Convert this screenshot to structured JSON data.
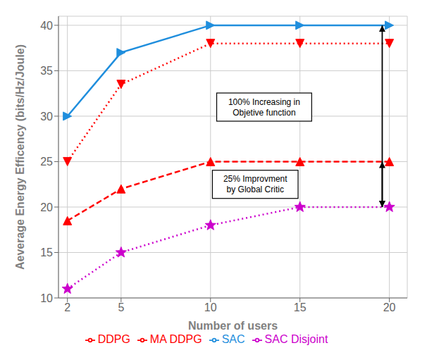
{
  "chart_data": {
    "type": "line",
    "x": [
      2,
      5,
      10,
      15,
      20
    ],
    "series": [
      {
        "name": "SAC",
        "color": "#1f8edd",
        "values": [
          30,
          37,
          40,
          40,
          40
        ],
        "marker": "triangle-right",
        "line_style": "solid"
      },
      {
        "name": "DDPG",
        "color": "#ff0000",
        "values": [
          25,
          33.5,
          38,
          38,
          38
        ],
        "marker": "triangle-down",
        "line_style": "dotted"
      },
      {
        "name": "MA DDPG",
        "color": "#ff0000",
        "values": [
          18.5,
          22,
          25,
          25,
          25
        ],
        "marker": "triangle-up",
        "line_style": "dashed"
      },
      {
        "name": "SAC Disjoint",
        "color": "#cc00cc",
        "values": [
          11,
          15,
          18,
          20,
          20
        ],
        "marker": "star",
        "line_style": "dotted"
      }
    ],
    "xlabel": "Number of  users",
    "ylabel": "Aeverage Energy Efficency (bits/Hz/Joule)",
    "xlim": [
      1.5,
      21
    ],
    "ylim": [
      10,
      41
    ],
    "xticks": [
      2,
      5,
      10,
      15,
      20
    ],
    "yticks": [
      10,
      15,
      20,
      25,
      30,
      35,
      40
    ],
    "grid": true,
    "annotations": [
      {
        "text": "100% Increasing in\nObjetive function",
        "x": 13.0,
        "y": 31.0
      },
      {
        "text": "25% Improvment\nby Global Critic",
        "x": 12.5,
        "y": 22.5
      }
    ],
    "arrows": [
      {
        "x": 19.6,
        "y_from": 20,
        "y_to": 40
      },
      {
        "x": 19.6,
        "y_from": 20,
        "y_to": 25
      }
    ]
  }
}
